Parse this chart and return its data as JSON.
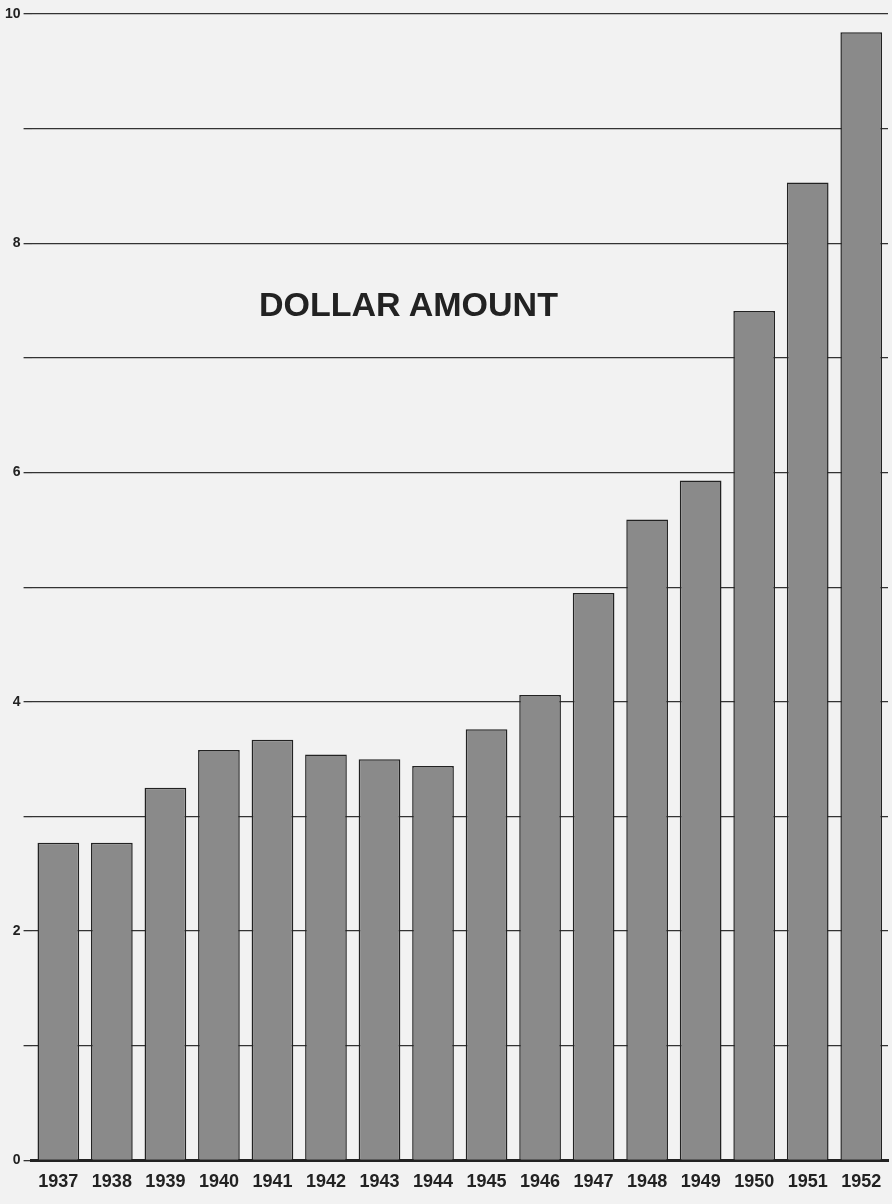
{
  "chart_data": {
    "type": "bar",
    "title": "DOLLAR AMOUNT",
    "categories": [
      "1937",
      "1938",
      "1939",
      "1940",
      "1941",
      "1942",
      "1943",
      "1944",
      "1945",
      "1946",
      "1947",
      "1948",
      "1949",
      "1950",
      "1951",
      "1952"
    ],
    "values": [
      2.77,
      2.77,
      3.25,
      3.58,
      3.67,
      3.54,
      3.5,
      3.44,
      3.76,
      4.06,
      4.95,
      5.59,
      5.93,
      7.41,
      8.53,
      9.84
    ],
    "color": "#8a8a8a",
    "ylim": [
      0,
      10
    ],
    "yticks": [
      0,
      {
        "value": 1,
        "label": null
      },
      2,
      {
        "value": 3,
        "label": null
      },
      4,
      {
        "value": 5,
        "label": null
      },
      6,
      {
        "value": 7,
        "label": null
      },
      8,
      {
        "value": 9,
        "label": null
      },
      10
    ],
    "grid": "y"
  }
}
